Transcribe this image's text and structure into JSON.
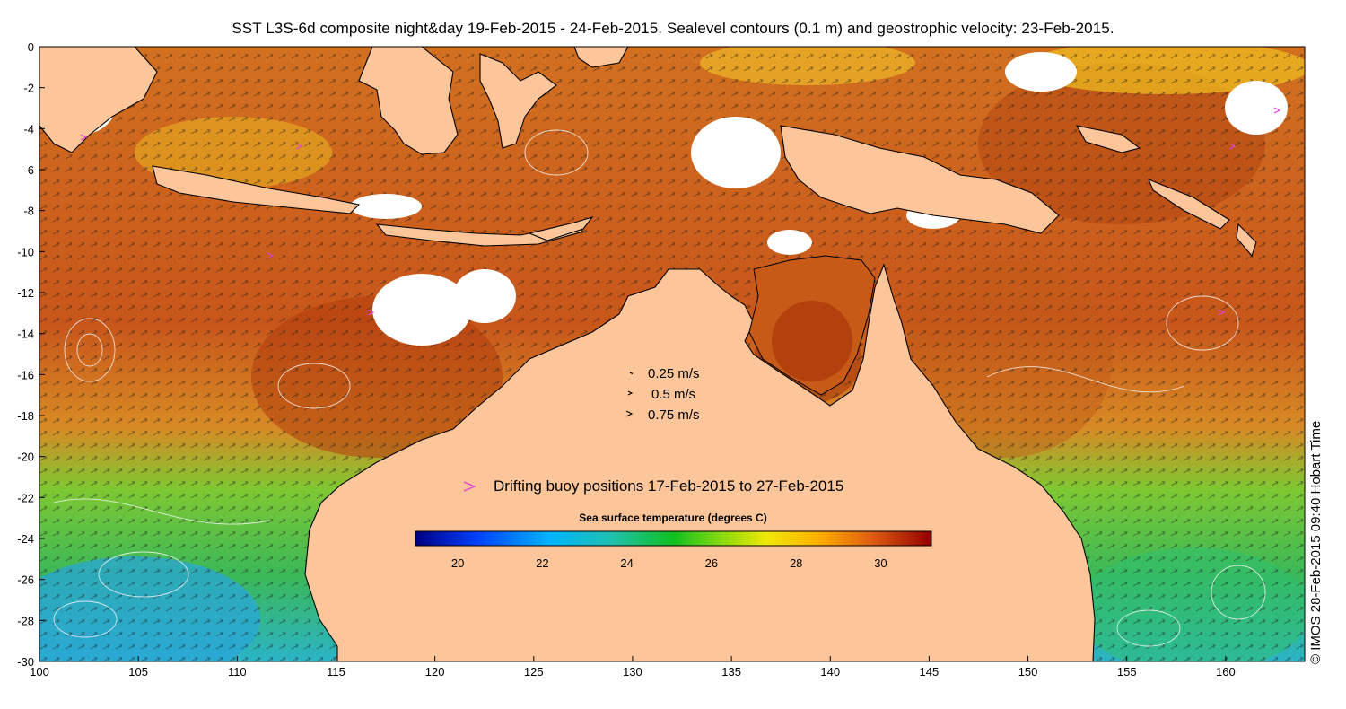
{
  "title": "SST L3S-6d composite night&day 19-Feb-2015 - 24-Feb-2015. Sealevel contours (0.1 m) and geostrophic velocity: 23-Feb-2015.",
  "map": {
    "lon_range": [
      100,
      164
    ],
    "lat_range": [
      -30,
      0
    ],
    "x_ticks": [
      "100",
      "105",
      "110",
      "115",
      "120",
      "125",
      "130",
      "135",
      "140",
      "145",
      "150",
      "155",
      "160"
    ],
    "y_ticks": [
      "0",
      "-2",
      "-4",
      "-6",
      "-8",
      "-10",
      "-12",
      "-14",
      "-16",
      "-18",
      "-20",
      "-22",
      "-24",
      "-26",
      "-28",
      "-30"
    ],
    "colors": {
      "land": "#fcc69a",
      "sst_hot": "#b84a10",
      "sst_warm": "#d9781c",
      "sst_mid": "#e8a422",
      "sst_cool": "#4cbf32",
      "sst_cold": "#27b8c4",
      "cloud": "#ffffff"
    }
  },
  "velocity_legend": {
    "items": [
      {
        "label": "0.25 m/s"
      },
      {
        "label": "0.5 m/s"
      },
      {
        "label": "0.75 m/s"
      }
    ]
  },
  "buoy_legend": {
    "label": "Drifting buoy positions 17-Feb-2015 to 27-Feb-2015",
    "marker_color": "#e040e0"
  },
  "colorbar": {
    "title": "Sea surface temperature (degrees C)",
    "range": [
      19,
      31.2
    ],
    "ticks": [
      "20",
      "22",
      "24",
      "26",
      "28",
      "30"
    ]
  },
  "credit": "© IMOS 28-Feb-2015 09:40 Hobart Time"
}
